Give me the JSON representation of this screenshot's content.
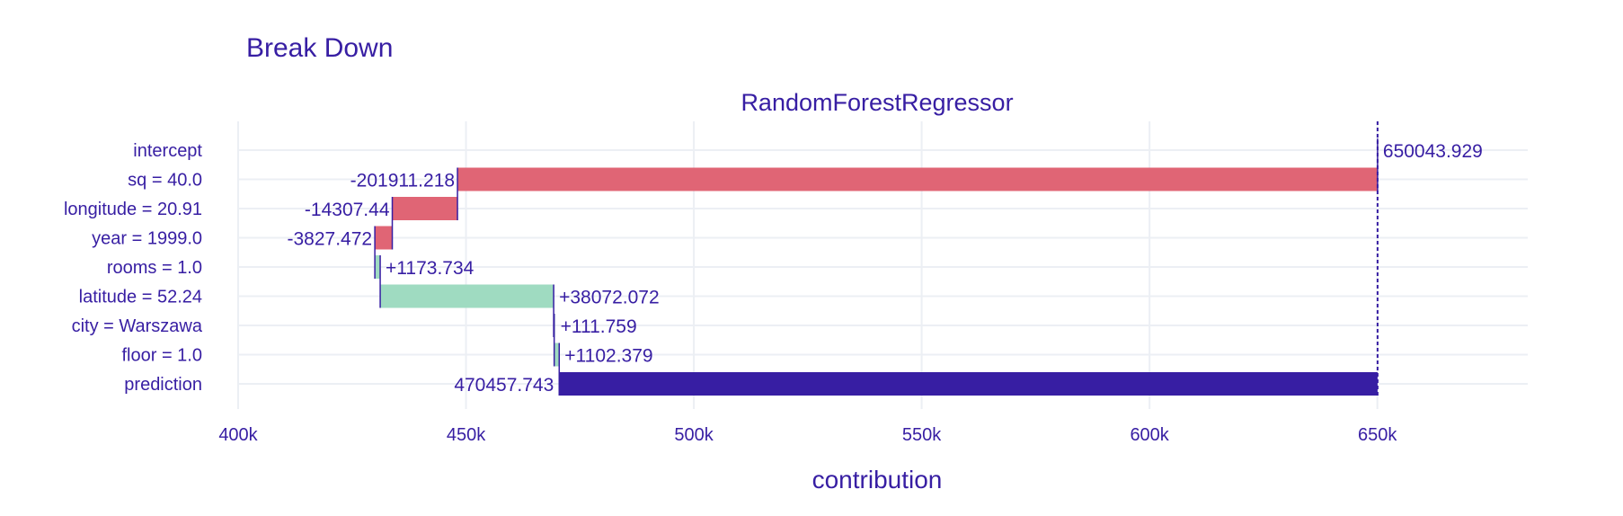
{
  "chart_data": {
    "type": "bar",
    "subtype": "waterfall-break-down",
    "title": "Break Down",
    "subtitle": "RandomForestRegressor",
    "xlabel": "contribution",
    "ylabel": "",
    "xlim": [
      400000,
      683000
    ],
    "x_ticks": [
      400000,
      450000,
      500000,
      550000,
      600000,
      650000
    ],
    "x_tick_labels": [
      "400k",
      "450k",
      "500k",
      "550k",
      "600k",
      "650k"
    ],
    "grid": true,
    "legend": "none",
    "intercept": 650043.929,
    "prediction": 470457.743,
    "rows": [
      {
        "label": "intercept",
        "value": 650043.929,
        "text": "650043.929",
        "kind": "intercept"
      },
      {
        "label": "sq = 40.0",
        "value": -201911.218,
        "text": "-201911.218",
        "kind": "neg"
      },
      {
        "label": "longitude = 20.91",
        "value": -14307.44,
        "text": "-14307.44",
        "kind": "neg"
      },
      {
        "label": "year = 1999.0",
        "value": -3827.472,
        "text": "-3827.472",
        "kind": "neg"
      },
      {
        "label": "rooms = 1.0",
        "value": 1173.734,
        "text": "+1173.734",
        "kind": "pos"
      },
      {
        "label": "latitude = 52.24",
        "value": 38072.072,
        "text": "+38072.072",
        "kind": "pos"
      },
      {
        "label": "city = Warszawa",
        "value": 111.759,
        "text": "+111.759",
        "kind": "pos"
      },
      {
        "label": "floor = 1.0",
        "value": 1102.379,
        "text": "+1102.379",
        "kind": "pos"
      },
      {
        "label": "prediction",
        "value": 470457.743,
        "text": "470457.743",
        "kind": "prediction"
      }
    ],
    "colors": {
      "negative": "#e06575",
      "positive": "#9fdbc1",
      "prediction": "#371ea3",
      "connector": "#371ea3",
      "text": "#371ea3",
      "grid": "#eceff4"
    }
  }
}
